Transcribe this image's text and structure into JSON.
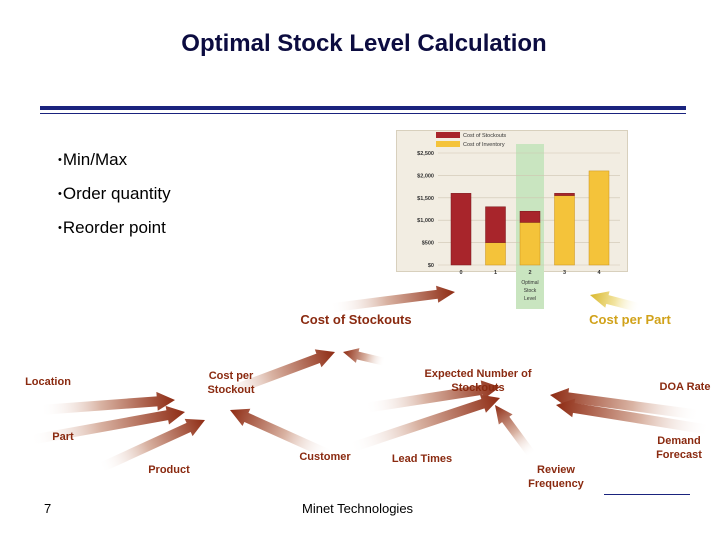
{
  "slide": {
    "title": "Optimal Stock Level Calculation",
    "bullets": [
      "Min/Max",
      "Order quantity",
      "Reorder point"
    ],
    "footer_page": "7",
    "footer_company": "Minet Technologies"
  },
  "diagram": {
    "cost_of_stockouts": "Cost of Stockouts",
    "cost_per_part": "Cost per Part",
    "labels": {
      "location": "Location",
      "part": "Part",
      "product": "Product",
      "cost_per_stockout_1": "Cost per",
      "cost_per_stockout_2": "Stockout",
      "customer": "Customer",
      "lead_times": "Lead Times",
      "expected_1": "Expected Number of",
      "expected_2": "Stockouts",
      "review_1": "Review",
      "review_2": "Frequency",
      "doa_rate": "DOA Rate",
      "demand_1": "Demand",
      "demand_2": "Forecast"
    }
  },
  "chart_data": {
    "type": "bar",
    "categories": [
      "0",
      "1",
      "2",
      "3",
      "4"
    ],
    "series": [
      {
        "name": "Cost of Stockouts",
        "values": [
          1600,
          800,
          250,
          50,
          0
        ]
      },
      {
        "name": "Cost of Inventory",
        "values": [
          0,
          500,
          950,
          1550,
          2100
        ]
      }
    ],
    "yticks": [
      "$2,500",
      "$2,000",
      "$1,500",
      "$1,000",
      "$500",
      "$0"
    ],
    "ylim": [
      0,
      2500
    ],
    "highlight_category": "2",
    "highlight_label": [
      "Optimal",
      "Stock",
      "Level"
    ],
    "colors": {
      "stockouts": "#a8252b",
      "inventory": "#f4c33a",
      "highlight": "#c9e5c0"
    }
  }
}
